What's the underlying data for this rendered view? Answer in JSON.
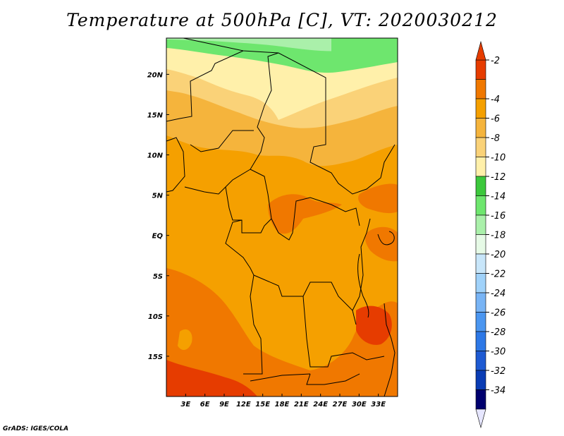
{
  "title": "Temperature at 500hPa [C], VT: 2020030212",
  "credit": "GrADS: IGES/COLA",
  "chart_data": {
    "type": "heatmap",
    "title": "Temperature at 500hPa [C], VT: 2020030212",
    "variable": "Temperature at 500hPa",
    "units": "C",
    "valid_time": "2020030212",
    "lon_range": [
      0,
      36
    ],
    "lat_range": [
      -20,
      24.5
    ],
    "x_ticks": [
      {
        "value": 3,
        "label": "3E"
      },
      {
        "value": 6,
        "label": "6E"
      },
      {
        "value": 9,
        "label": "9E"
      },
      {
        "value": 12,
        "label": "12E"
      },
      {
        "value": 15,
        "label": "15E"
      },
      {
        "value": 18,
        "label": "18E"
      },
      {
        "value": 21,
        "label": "21E"
      },
      {
        "value": 24,
        "label": "24E"
      },
      {
        "value": 27,
        "label": "27E"
      },
      {
        "value": 30,
        "label": "30E"
      },
      {
        "value": 33,
        "label": "33E"
      }
    ],
    "y_ticks": [
      {
        "value": 20,
        "label": "20N"
      },
      {
        "value": 15,
        "label": "15N"
      },
      {
        "value": 10,
        "label": "10N"
      },
      {
        "value": 5,
        "label": "5N"
      },
      {
        "value": 0,
        "label": "EQ"
      },
      {
        "value": -5,
        "label": "5S"
      },
      {
        "value": -10,
        "label": "10S"
      },
      {
        "value": -15,
        "label": "15S"
      }
    ],
    "colorbar": {
      "labels": [
        "-2",
        "-4",
        "-6",
        "-8",
        "-10",
        "-12",
        "-14",
        "-16",
        "-18",
        "-20",
        "-22",
        "-24",
        "-26",
        "-28",
        "-30",
        "-32",
        "-34"
      ],
      "bins": [
        {
          "color": "#e63c00"
        },
        {
          "color": "#f07800"
        },
        {
          "color": "#f5a000"
        },
        {
          "color": "#f5b43c"
        },
        {
          "color": "#fad278"
        },
        {
          "color": "#fff0aa"
        },
        {
          "color": "#3cc83c"
        },
        {
          "color": "#6ee66e"
        },
        {
          "color": "#aaf0aa"
        },
        {
          "color": "#e6fae6"
        },
        {
          "color": "#c8e6fa"
        },
        {
          "color": "#a0d2fa"
        },
        {
          "color": "#78b4f5"
        },
        {
          "color": "#4b96f0"
        },
        {
          "color": "#2d78e6"
        },
        {
          "color": "#1e5ad2"
        },
        {
          "color": "#0a3cb4"
        },
        {
          "color": "#00006e"
        }
      ],
      "top_arrow_color": "#e63c00",
      "bottom_arrow_color": "#e6e6ff"
    },
    "regions": [
      {
        "level": "-14 to -12",
        "color": "#6ee66e",
        "description": "northern edge"
      },
      {
        "level": "-12 to -10",
        "color": "#fff0aa",
        "description": "central north band"
      },
      {
        "level": "-10 to -8",
        "color": "#fad278",
        "description": "northern band"
      },
      {
        "level": "-8 to -6",
        "color": "#f5b43c",
        "description": "Sahel band"
      },
      {
        "level": "-6 to -4",
        "color": "#f5a000",
        "description": "central Africa"
      },
      {
        "level": "-4 to -2",
        "color": "#f07800",
        "description": "south and east patches"
      },
      {
        "level": "above -2",
        "color": "#e63c00",
        "description": "southwest corner"
      }
    ]
  }
}
